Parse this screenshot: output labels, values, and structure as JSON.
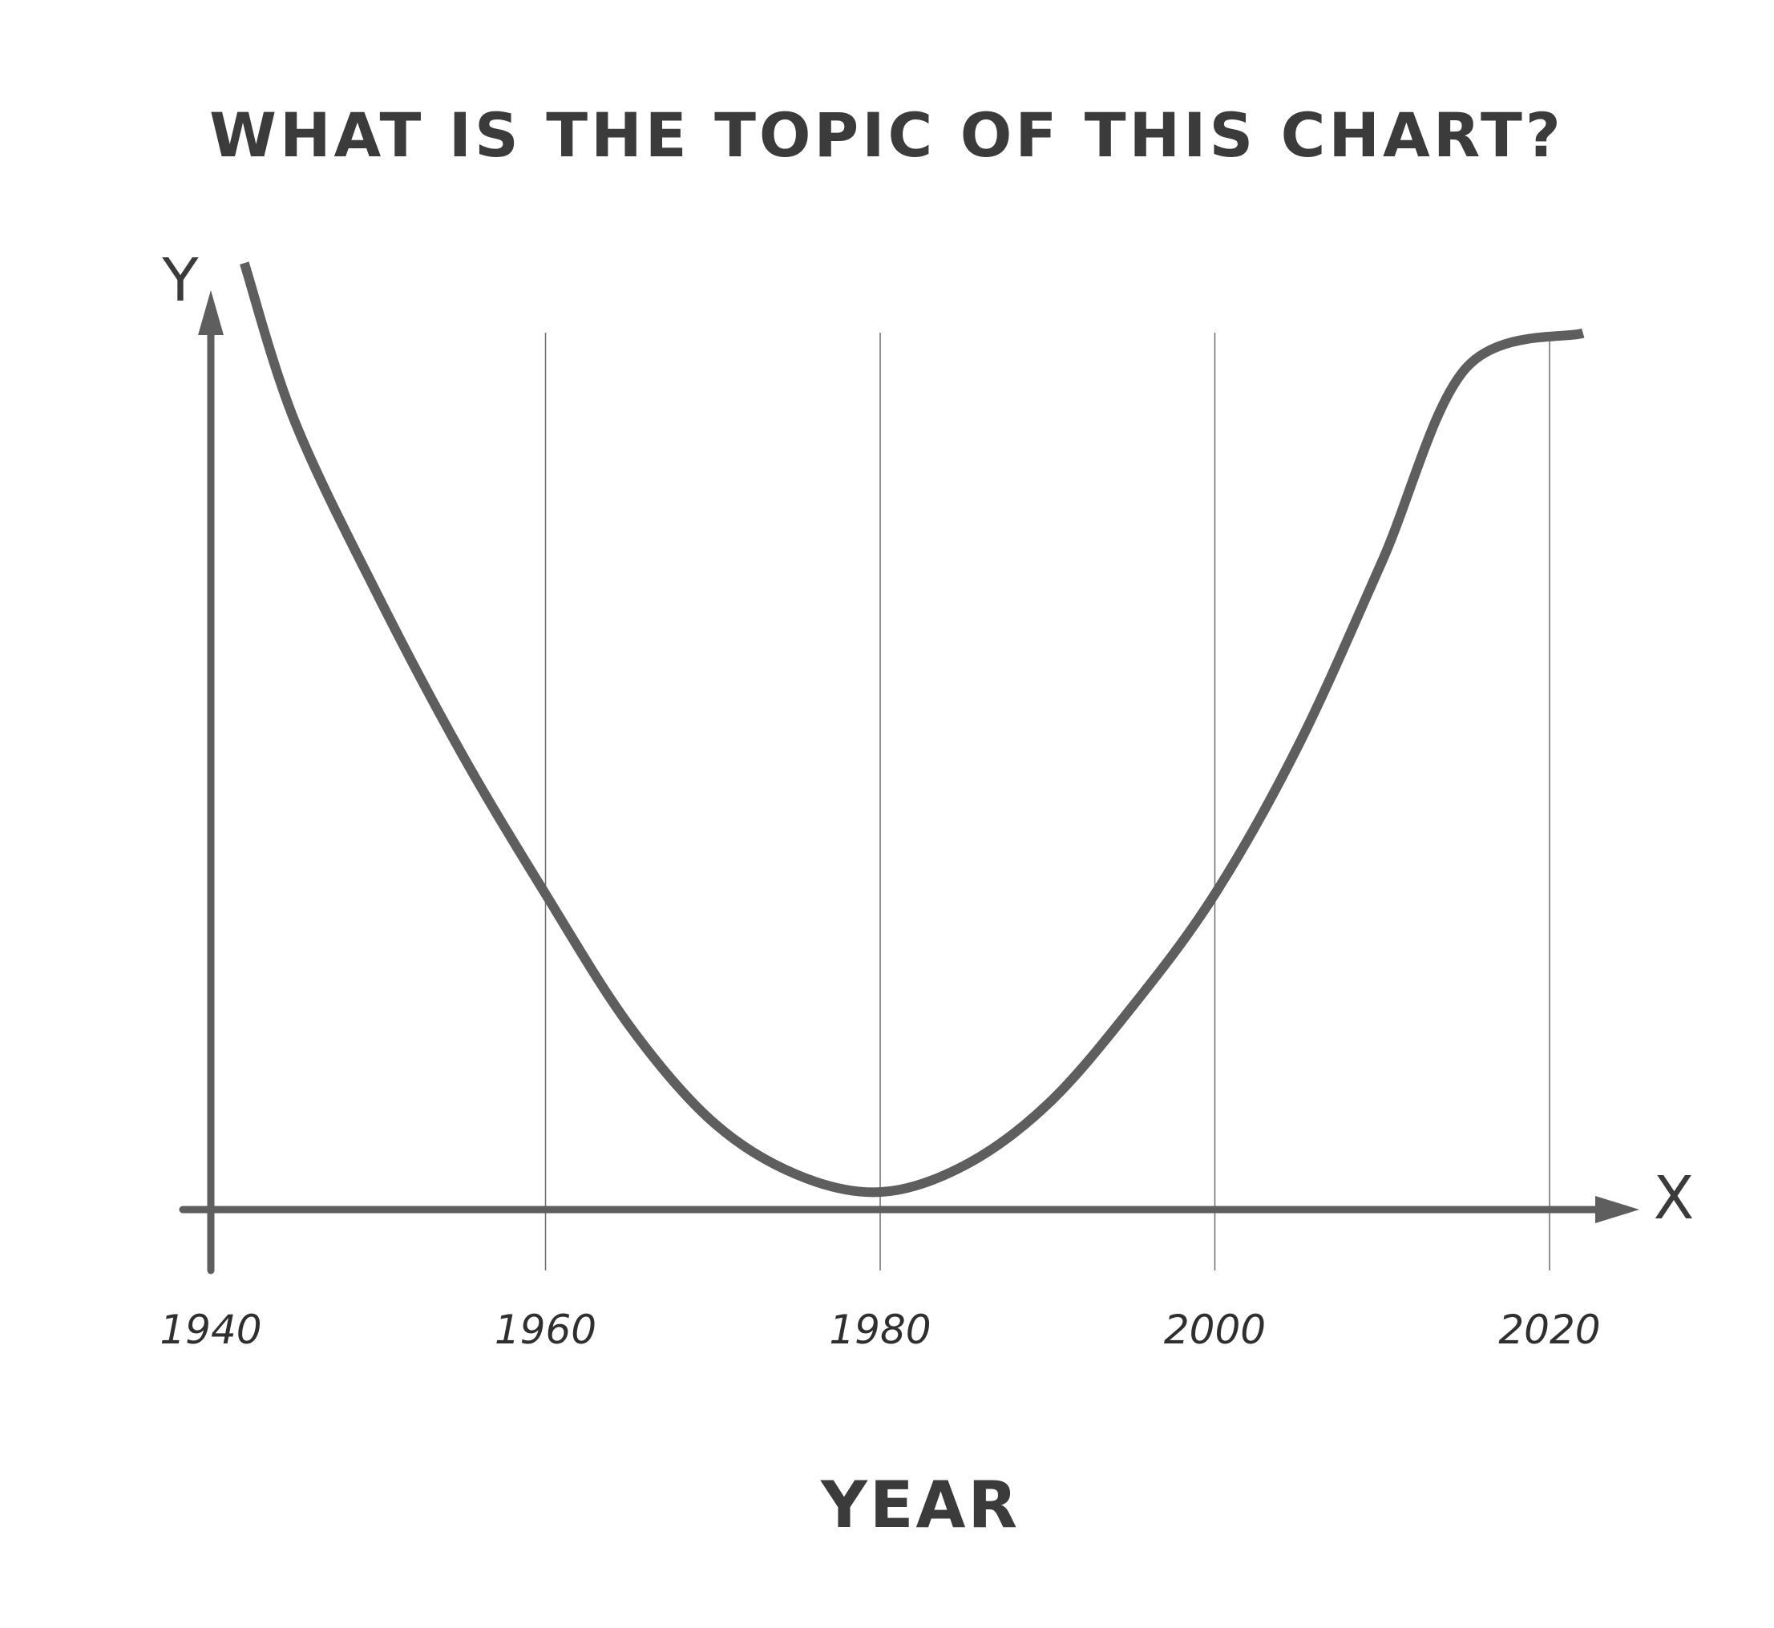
{
  "chart_data": {
    "type": "line",
    "title": "WHAT IS THE TOPIC OF THIS CHART?",
    "xlabel": "YEAR",
    "ylabel": "",
    "x_axis_letter": "X",
    "y_axis_letter": "Y",
    "x_ticks": [
      1940,
      1960,
      1980,
      2000,
      2020
    ],
    "x_tick_labels": [
      "1940",
      "1960",
      "1980",
      "2000",
      "2020"
    ],
    "xlim": [
      1940,
      2020
    ],
    "grid": {
      "vertical": true,
      "horizontal": false
    },
    "y_ticks_shown": false,
    "series": [
      {
        "color": "#5e5e5e",
        "x": [
          1942,
          1945,
          1950,
          1955,
          1960,
          1965,
          1970,
          1975,
          1980,
          1985,
          1990,
          1995,
          2000,
          2005,
          2010,
          2015,
          2022
        ],
        "y": [
          1.08,
          0.9,
          0.7,
          0.52,
          0.36,
          0.21,
          0.1,
          0.04,
          0.02,
          0.05,
          0.12,
          0.23,
          0.36,
          0.53,
          0.74,
          0.96,
          1.0
        ]
      }
    ],
    "ylim": [
      0,
      1.06
    ],
    "colors": {
      "axis": "#5e5e5e",
      "grid": "#6f6f6f",
      "line": "#5e5e5e",
      "text": "#3b3b3b"
    }
  }
}
